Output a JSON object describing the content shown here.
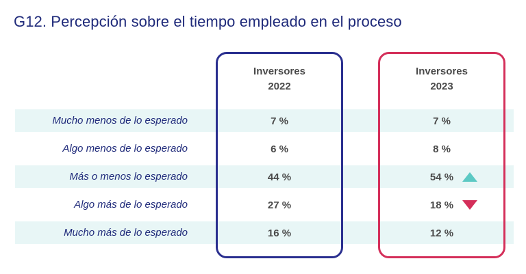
{
  "title": "G12. Percepción sobre el tiempo empleado en el proceso",
  "chart_data": {
    "type": "table",
    "columns": [
      "Inversores 2022",
      "Inversores 2023"
    ],
    "column_headers": [
      {
        "line1": "Inversores",
        "line2": "2022"
      },
      {
        "line1": "Inversores",
        "line2": "2023"
      }
    ],
    "rows": [
      {
        "label": "Mucho menos de lo esperado",
        "v2022": "7 %",
        "v2023": "7 %",
        "trend": ""
      },
      {
        "label": "Algo menos de lo esperado",
        "v2022": "6 %",
        "v2023": "8 %",
        "trend": ""
      },
      {
        "label": "Más o menos lo esperado",
        "v2022": "44 %",
        "v2023": "54 %",
        "trend": "up"
      },
      {
        "label": "Algo más de lo esperado",
        "v2022": "27 %",
        "v2023": "18 %",
        "trend": "down"
      },
      {
        "label": "Mucho más de lo esperado",
        "v2022": "16 %",
        "v2023": "12 %",
        "trend": ""
      }
    ],
    "values_2022": [
      7,
      6,
      44,
      27,
      16
    ],
    "values_2023": [
      7,
      8,
      54,
      18,
      12
    ],
    "colors": {
      "title": "#1f2a7a",
      "band": "#e8f6f6",
      "box_2022": "#2a2f8f",
      "box_2023": "#d42f5a",
      "arrow_up": "#5cc9c4",
      "arrow_down": "#d42f5a"
    }
  }
}
